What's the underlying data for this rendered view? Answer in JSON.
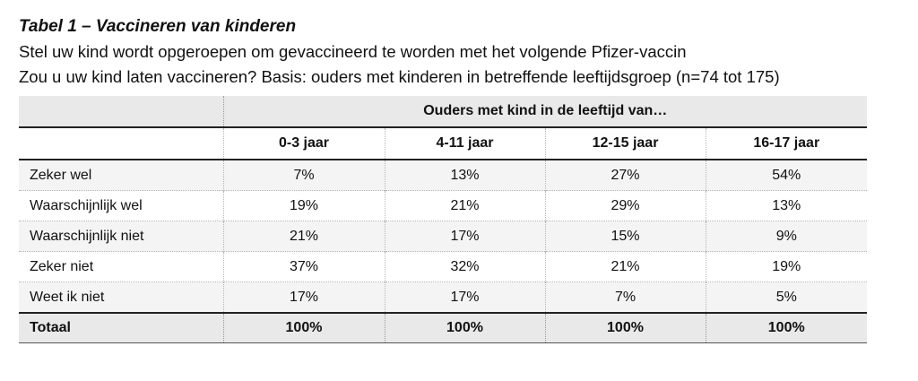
{
  "header": {
    "title": "Tabel 1 – Vaccineren van kinderen",
    "line1": "Stel uw kind wordt opgeroepen om gevaccineerd te worden met het volgende Pfizer-vaccin",
    "line2": "Zou u uw kind laten vaccineren? Basis: ouders met kinderen in betreffende leeftijdsgroep (n=74 tot 175)"
  },
  "table": {
    "group_header": "Ouders met kind in de leeftijd van…",
    "columns": [
      "0-3 jaar",
      "4-11 jaar",
      "12-15 jaar",
      "16-17 jaar"
    ],
    "rows": [
      {
        "label": "Zeker wel",
        "values": [
          "7%",
          "13%",
          "27%",
          "54%"
        ]
      },
      {
        "label": "Waarschijnlijk wel",
        "values": [
          "19%",
          "21%",
          "29%",
          "13%"
        ]
      },
      {
        "label": "Waarschijnlijk niet",
        "values": [
          "21%",
          "17%",
          "15%",
          "9%"
        ]
      },
      {
        "label": "Zeker niet",
        "values": [
          "37%",
          "32%",
          "21%",
          "19%"
        ]
      },
      {
        "label": "Weet ik niet",
        "values": [
          "17%",
          "17%",
          "7%",
          "5%"
        ]
      }
    ],
    "total": {
      "label": "Totaal",
      "values": [
        "100%",
        "100%",
        "100%",
        "100%"
      ]
    }
  }
}
